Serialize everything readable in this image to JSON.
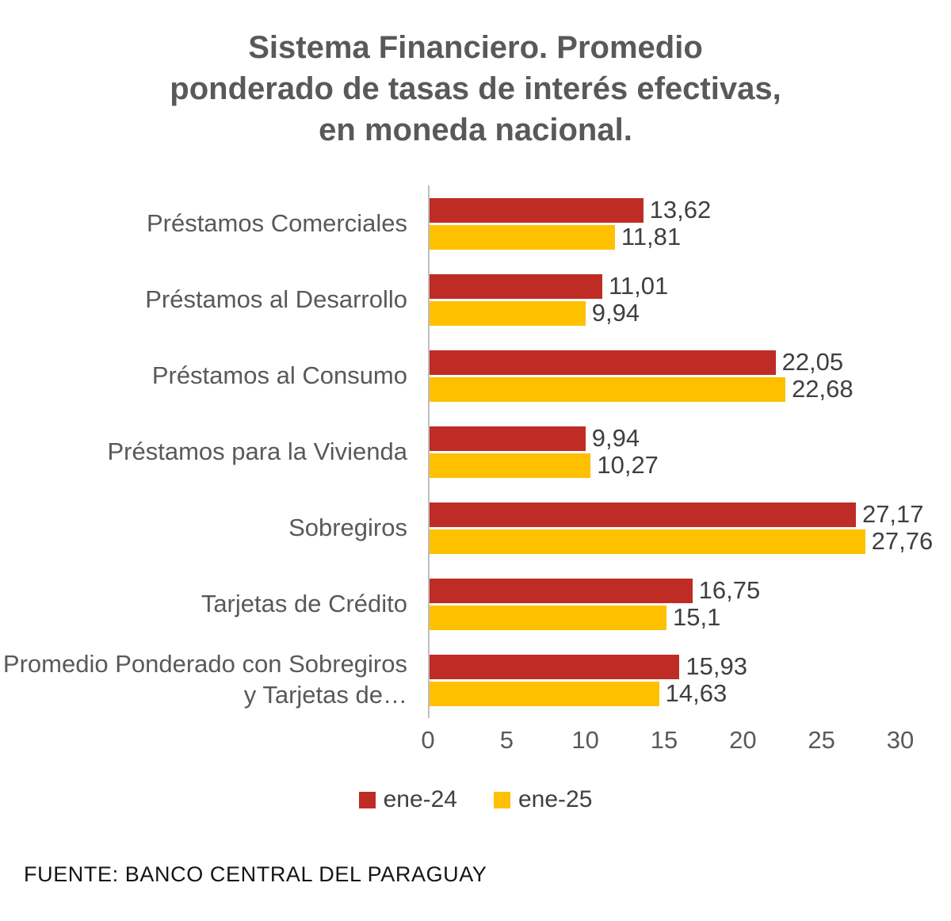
{
  "header": {
    "title_lines": [
      "Sistema Financiero. Promedio",
      "ponderado de tasas de interés efectivas,",
      "en moneda nacional."
    ]
  },
  "chart_data": {
    "type": "bar",
    "orientation": "horizontal",
    "title": "Sistema Financiero. Promedio ponderado de tasas de interés efectivas, en moneda nacional.",
    "categories": [
      "Préstamos Comerciales",
      "Préstamos al Desarrollo",
      "Préstamos al Consumo",
      "Préstamos para la Vivienda",
      "Sobregiros",
      "Tarjetas de Crédito",
      "Promedio Ponderado con Sobregiros y Tarjetas de…"
    ],
    "series": [
      {
        "name": "ene-24",
        "color": "#BF2C25",
        "values": [
          13.62,
          11.01,
          22.05,
          9.94,
          27.17,
          16.75,
          15.93
        ],
        "labels": [
          "13,62",
          "11,01",
          "22,05",
          "9,94",
          "27,17",
          "16,75",
          "15,93"
        ]
      },
      {
        "name": "ene-25",
        "color": "#FFC000",
        "values": [
          11.81,
          9.94,
          22.68,
          10.27,
          27.76,
          15.1,
          14.63
        ],
        "labels": [
          "11,81",
          "9,94",
          "22,68",
          "10,27",
          "27,76",
          "15,1",
          "14,63"
        ]
      }
    ],
    "xlim": [
      0,
      30
    ],
    "xticks": [
      0,
      5,
      10,
      15,
      20,
      25,
      30
    ],
    "legend_position": "bottom",
    "grid": false
  },
  "colors": {
    "axis_line": "#BFBFBF",
    "category_text": "#595959",
    "value_text": "#3F3F3F",
    "tick_text": "#595959",
    "title_text": "#595959"
  },
  "footer": {
    "text": "FUENTE: BANCO CENTRAL DEL PARAGUAY"
  }
}
